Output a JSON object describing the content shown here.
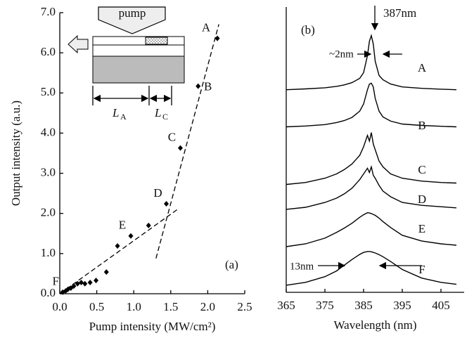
{
  "chart_data": [
    {
      "type": "scatter",
      "xlabel": "Pump intensity (MW/cm²)",
      "ylabel": "Output intensity  (a.u.)",
      "xlim": [
        0,
        2.5
      ],
      "ylim": [
        0,
        7
      ],
      "xticks": [
        {
          "value": 0,
          "label": "0.0"
        },
        {
          "value": 0.5,
          "label": "0.5"
        },
        {
          "value": 1,
          "label": "1.0"
        },
        {
          "value": 1.5,
          "label": "1.5"
        },
        {
          "value": 2,
          "label": "2.0"
        },
        {
          "value": 2.5,
          "label": "2.5"
        }
      ],
      "yticks": [
        {
          "value": 0,
          "label": "0.0"
        },
        {
          "value": 1,
          "label": "1.0"
        },
        {
          "value": 2,
          "label": "2.0"
        },
        {
          "value": 3,
          "label": "3.0"
        },
        {
          "value": 4,
          "label": "4.0"
        },
        {
          "value": 5,
          "label": "5.0"
        },
        {
          "value": 6,
          "label": "6.0"
        },
        {
          "value": 7,
          "label": "7.0"
        }
      ],
      "series": [
        {
          "color": "#000000",
          "marker": "diamond",
          "x": [
            0.04,
            0.08,
            0.11,
            0.15,
            0.19,
            0.24,
            0.29,
            0.34,
            0.41,
            0.49,
            0.63,
            0.78,
            0.96,
            1.2,
            1.44,
            1.63,
            1.87,
            2.13
          ],
          "values": [
            0.04,
            0.07,
            0.11,
            0.14,
            0.19,
            0.25,
            0.28,
            0.25,
            0.28,
            0.33,
            0.54,
            1.19,
            1.44,
            1.7,
            2.24,
            3.63,
            5.17,
            6.36
          ],
          "point_labels": [
            "F",
            null,
            null,
            null,
            null,
            null,
            null,
            null,
            null,
            null,
            null,
            null,
            "E",
            null,
            "D",
            "C",
            "B",
            "A"
          ]
        }
      ],
      "fit_lines": [
        {
          "color": "#000000",
          "dashed": true,
          "x": [
            0,
            1.59
          ],
          "values": [
            0,
            2.1
          ]
        },
        {
          "color": "#000000",
          "dashed": true,
          "x": [
            1.3,
            2.15
          ],
          "values": [
            0.88,
            6.71
          ]
        }
      ],
      "annotation": "(a)",
      "inset": {
        "pump": "pump",
        "length_a": {
          "symbol": "L",
          "subscript": "A"
        },
        "length_c": {
          "symbol": "L",
          "subscript": "C"
        }
      }
    },
    {
      "type": "line",
      "xlabel": "Wavelength (nm)",
      "xlim": [
        365,
        411
      ],
      "ylim": [
        0,
        100
      ],
      "xticks": [
        365,
        375,
        385,
        395,
        405
      ],
      "x": [
        365,
        370,
        375,
        378,
        380,
        382,
        384,
        385,
        386,
        386.5,
        387,
        387.5,
        388,
        389,
        390,
        392,
        395,
        400,
        405,
        409
      ],
      "series": [
        {
          "name": "A",
          "color": "#000000",
          "values": [
            71,
            71.3,
            71.7,
            72.2,
            72.7,
            73.5,
            75,
            77,
            83,
            88,
            90,
            87,
            81,
            76,
            74.5,
            73,
            72,
            71.5,
            71.2,
            71
          ]
        },
        {
          "name": "B",
          "color": "#000000",
          "values": [
            58,
            58.3,
            58.8,
            59.5,
            60.2,
            61.3,
            63.5,
            66,
            71,
            73,
            73.3,
            72,
            68,
            63.5,
            61.5,
            60,
            59,
            58.5,
            58.2,
            58
          ]
        },
        {
          "name": "C",
          "color": "#000000",
          "values": [
            37.8,
            38.5,
            40,
            41.5,
            43,
            45,
            48,
            51,
            55,
            53,
            56,
            52,
            50,
            46,
            44,
            41.5,
            40,
            39,
            38.5,
            38.3
          ]
        },
        {
          "name": "D",
          "color": "#000000",
          "values": [
            29.1,
            29.8,
            31.5,
            33,
            34.5,
            36.5,
            39.5,
            41.5,
            43.5,
            42,
            44,
            41,
            40,
            37.5,
            35.5,
            33.5,
            31.5,
            30.5,
            30,
            29.6
          ]
        },
        {
          "name": "E",
          "color": "#000000",
          "values": [
            16,
            17,
            19,
            21,
            22.5,
            24.2,
            26.3,
            27.2,
            27.9,
            27.8,
            27.6,
            27.3,
            27,
            26,
            24.8,
            22.7,
            20,
            18,
            17,
            16.5
          ]
        },
        {
          "name": "F",
          "color": "#000000",
          "values": [
            2.5,
            3.5,
            5.5,
            7.5,
            9.5,
            11.5,
            13.3,
            14,
            14.3,
            14.3,
            14.2,
            14,
            13.8,
            13.2,
            12.5,
            10.8,
            8,
            5,
            3.5,
            2.8
          ]
        }
      ],
      "annotations": {
        "panel": "(b)",
        "peak": "387nm",
        "narrow_width": "~2nm",
        "broad_width": "13nm"
      }
    }
  ]
}
